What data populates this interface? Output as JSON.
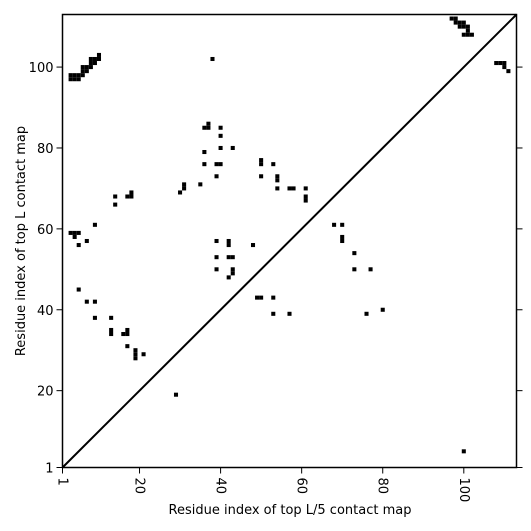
{
  "chart_data": {
    "type": "scatter",
    "title": "",
    "xlabel": "Residue index of top L/5 contact map",
    "ylabel": "Residue index of top L contact map",
    "xlim": [
      1,
      113
    ],
    "ylim": [
      1,
      113
    ],
    "x_ticks": [
      1,
      20,
      40,
      60,
      80,
      100
    ],
    "x_tick_labels": [
      "1",
      "20",
      "40",
      "60",
      "80",
      "100"
    ],
    "y_ticks": [
      1,
      20,
      40,
      60,
      80,
      100
    ],
    "y_tick_labels": [
      "1",
      "20",
      "40",
      "60",
      "80",
      "100"
    ],
    "grid": false,
    "diagonal_line": true,
    "point_color": "#000000",
    "series": [
      {
        "values": [
          [
            3,
            97
          ],
          [
            3,
            98
          ],
          [
            4,
            97
          ],
          [
            4,
            98
          ],
          [
            5,
            97
          ],
          [
            5,
            98
          ],
          [
            6,
            98
          ],
          [
            6,
            99
          ],
          [
            6,
            100
          ],
          [
            7,
            99
          ],
          [
            7,
            100
          ],
          [
            8,
            100
          ],
          [
            8,
            101
          ],
          [
            8,
            102
          ],
          [
            9,
            101
          ],
          [
            9,
            102
          ],
          [
            10,
            102
          ],
          [
            10,
            103
          ],
          [
            38,
            102
          ],
          [
            97,
            112
          ],
          [
            98,
            111
          ],
          [
            98,
            112
          ],
          [
            99,
            110
          ],
          [
            99,
            111
          ],
          [
            100,
            110
          ],
          [
            100,
            111
          ],
          [
            101,
            109
          ],
          [
            101,
            110
          ],
          [
            100,
            108
          ],
          [
            101,
            108
          ],
          [
            102,
            108
          ],
          [
            108,
            101
          ],
          [
            109,
            101
          ],
          [
            110,
            100
          ],
          [
            110,
            101
          ],
          [
            111,
            99
          ],
          [
            3,
            59
          ],
          [
            4,
            59
          ],
          [
            5,
            59
          ],
          [
            4,
            58
          ],
          [
            5,
            56
          ],
          [
            7,
            57
          ],
          [
            9,
            61
          ],
          [
            5,
            45
          ],
          [
            7,
            42
          ],
          [
            9,
            42
          ],
          [
            9,
            38
          ],
          [
            13,
            38
          ],
          [
            13,
            35
          ],
          [
            13,
            34
          ],
          [
            16,
            34
          ],
          [
            17,
            34
          ],
          [
            17,
            35
          ],
          [
            17,
            31
          ],
          [
            19,
            30
          ],
          [
            19,
            29
          ],
          [
            19,
            28
          ],
          [
            21,
            29
          ],
          [
            14,
            68
          ],
          [
            14,
            66
          ],
          [
            17,
            68
          ],
          [
            18,
            68
          ],
          [
            18,
            69
          ],
          [
            29,
            19
          ],
          [
            30,
            69
          ],
          [
            31,
            70
          ],
          [
            31,
            71
          ],
          [
            35,
            71
          ],
          [
            36,
            85
          ],
          [
            37,
            85
          ],
          [
            37,
            86
          ],
          [
            36,
            79
          ],
          [
            36,
            76
          ],
          [
            39,
            73
          ],
          [
            39,
            76
          ],
          [
            40,
            76
          ],
          [
            40,
            80
          ],
          [
            40,
            83
          ],
          [
            40,
            85
          ],
          [
            43,
            80
          ],
          [
            39,
            57
          ],
          [
            39,
            53
          ],
          [
            39,
            50
          ],
          [
            42,
            57
          ],
          [
            42,
            56
          ],
          [
            42,
            53
          ],
          [
            43,
            53
          ],
          [
            43,
            50
          ],
          [
            43,
            49
          ],
          [
            42,
            48
          ],
          [
            48,
            56
          ],
          [
            49,
            43
          ],
          [
            50,
            43
          ],
          [
            53,
            43
          ],
          [
            53,
            39
          ],
          [
            57,
            39
          ],
          [
            50,
            77
          ],
          [
            50,
            76
          ],
          [
            50,
            73
          ],
          [
            53,
            76
          ],
          [
            54,
            73
          ],
          [
            54,
            72
          ],
          [
            54,
            70
          ],
          [
            57,
            70
          ],
          [
            58,
            70
          ],
          [
            61,
            70
          ],
          [
            61,
            68
          ],
          [
            61,
            67
          ],
          [
            68,
            61
          ],
          [
            70,
            61
          ],
          [
            70,
            58
          ],
          [
            70,
            57
          ],
          [
            73,
            54
          ],
          [
            73,
            50
          ],
          [
            77,
            50
          ],
          [
            76,
            39
          ],
          [
            80,
            40
          ],
          [
            100,
            5
          ]
        ]
      }
    ]
  }
}
